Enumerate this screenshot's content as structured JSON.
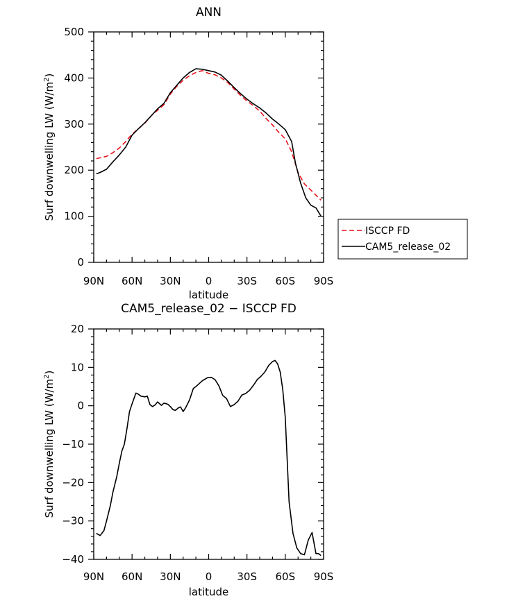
{
  "chart_data": [
    {
      "type": "line",
      "title": "ANN",
      "xlabel": "latitude",
      "ylabel": "Surf downwelling LW (W/m",
      "ylabel_sup": "2",
      "ylabel_close": ")",
      "xlim": [
        90,
        -90
      ],
      "ylim": [
        0,
        500
      ],
      "xticks": [
        90,
        60,
        30,
        0,
        -30,
        -60,
        -90
      ],
      "xticklabels": [
        "90N",
        "60N",
        "30N",
        "0",
        "30S",
        "60S",
        "90S"
      ],
      "yticks": [
        0,
        100,
        200,
        300,
        400,
        500
      ],
      "yticklabels": [
        "0",
        "100",
        "200",
        "300",
        "400",
        "500"
      ],
      "grid": false,
      "legend_position": "right",
      "series": [
        {
          "name": "ISCCP FD",
          "color": "#e8141c",
          "dash": "dashed",
          "x": [
            88,
            80,
            75,
            70,
            65,
            60,
            55,
            50,
            45,
            40,
            35,
            30,
            25,
            20,
            15,
            10,
            5,
            0,
            -5,
            -10,
            -15,
            -20,
            -25,
            -30,
            -35,
            -40,
            -45,
            -50,
            -55,
            -60,
            -65,
            -70,
            -75,
            -80,
            -85,
            -88
          ],
          "y": [
            225,
            230,
            238,
            248,
            262,
            278,
            290,
            302,
            318,
            330,
            342,
            365,
            382,
            395,
            405,
            412,
            416,
            410,
            407,
            400,
            390,
            376,
            362,
            350,
            340,
            328,
            312,
            298,
            282,
            268,
            240,
            195,
            170,
            157,
            143,
            135
          ]
        },
        {
          "name": "CAM5_release_02",
          "color": "#000000",
          "dash": "solid",
          "x": [
            88,
            85,
            80,
            75,
            70,
            65,
            60,
            55,
            50,
            45,
            40,
            35,
            30,
            25,
            20,
            15,
            10,
            5,
            0,
            -5,
            -10,
            -15,
            -20,
            -25,
            -30,
            -35,
            -40,
            -45,
            -50,
            -55,
            -60,
            -65,
            -68,
            -72,
            -76,
            -80,
            -84,
            -88
          ],
          "y": [
            192,
            195,
            202,
            218,
            233,
            250,
            276,
            290,
            303,
            318,
            333,
            345,
            368,
            384,
            400,
            412,
            420,
            419,
            416,
            413,
            406,
            393,
            379,
            366,
            354,
            344,
            335,
            324,
            311,
            300,
            288,
            262,
            215,
            172,
            140,
            124,
            118,
            100
          ]
        }
      ]
    },
    {
      "type": "line",
      "title": "CAM5_release_02 − ISCCP FD",
      "xlabel": "latitude",
      "ylabel": "Surf downwelling LW (W/m",
      "ylabel_sup": "2",
      "ylabel_close": ")",
      "xlim": [
        90,
        -90
      ],
      "ylim": [
        -40,
        20
      ],
      "xticks": [
        90,
        60,
        30,
        0,
        -30,
        -60,
        -90
      ],
      "xticklabels": [
        "90N",
        "60N",
        "30N",
        "0",
        "30S",
        "60S",
        "90S"
      ],
      "yticks": [
        -40,
        -30,
        -20,
        -10,
        0,
        10,
        20
      ],
      "yticklabels": [
        "−40",
        "−30",
        "−20",
        "−10",
        "0",
        "10",
        "20"
      ],
      "grid": false,
      "series": [
        {
          "color": "#000000",
          "dash": "solid",
          "x": [
            88,
            85,
            82,
            80,
            77,
            75,
            72,
            70,
            68,
            66,
            64,
            62,
            60,
            57,
            55,
            53,
            50,
            48,
            46,
            44,
            42,
            40,
            37,
            35,
            32,
            30,
            28,
            26,
            24,
            22,
            20,
            18,
            15,
            12,
            10,
            8,
            5,
            3,
            1,
            -2,
            -5,
            -8,
            -11,
            -14,
            -17,
            -20,
            -23,
            -26,
            -29,
            -32,
            -35,
            -38,
            -41,
            -44,
            -47,
            -50,
            -52,
            -54,
            -56,
            -58,
            -60,
            -63,
            -66,
            -69,
            -72,
            -75,
            -78,
            -81,
            -84,
            -86,
            -88
          ],
          "y": [
            -33.2,
            -33.8,
            -32.5,
            -30,
            -26,
            -22.5,
            -18.5,
            -15,
            -11.8,
            -10,
            -6,
            -1.5,
            0.5,
            3.3,
            3,
            2.5,
            2.3,
            2.5,
            0.3,
            -0.2,
            0.2,
            1,
            0.1,
            0.7,
            0.4,
            -0.2,
            -1,
            -1.2,
            -0.6,
            -0.3,
            -1.5,
            -0.5,
            1.5,
            4.5,
            5,
            5.6,
            6.5,
            6.9,
            7.3,
            7.4,
            6.8,
            5.2,
            2.7,
            1.9,
            -0.2,
            0.3,
            1.2,
            2.8,
            3.2,
            4,
            5.3,
            6.8,
            7.7,
            8.8,
            10.5,
            11.5,
            11.8,
            10.9,
            8.8,
            4.2,
            -3,
            -25,
            -33.2,
            -37,
            -38.5,
            -38.8,
            -35,
            -33,
            -38.5,
            -38.5,
            -39
          ]
        }
      ]
    }
  ]
}
